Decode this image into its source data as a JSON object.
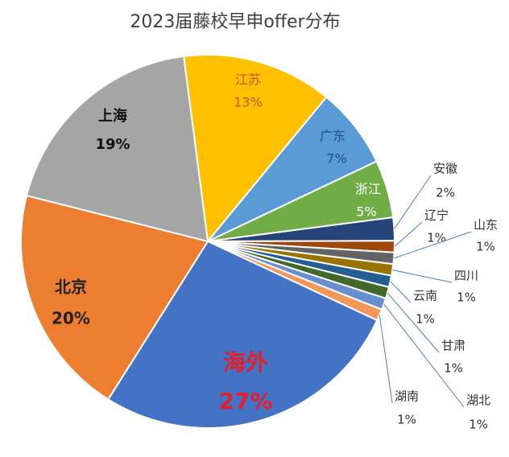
{
  "chart_data": {
    "type": "pie",
    "title": "2023届藤校早申offer分布",
    "categories": [
      "江苏",
      "广东",
      "浙江",
      "安徽",
      "辽宁",
      "山东",
      "四川",
      "云南",
      "甘肃",
      "湖北",
      "湖南",
      "海外",
      "北京",
      "上海"
    ],
    "values": [
      13,
      7,
      5,
      2,
      1,
      1,
      1,
      1,
      1,
      1,
      1,
      27,
      20,
      19
    ],
    "value_labels": [
      "13%",
      "7%",
      "5%",
      "2%",
      "1%",
      "1%",
      "1%",
      "1%",
      "1%",
      "1%",
      "1%",
      "27%",
      "20%",
      "19%"
    ],
    "colors": [
      "#ffc000",
      "#5b9bd5",
      "#70ad47",
      "#264478",
      "#9e480e",
      "#636363",
      "#997300",
      "#255e91",
      "#43682b",
      "#698ed0",
      "#f1975a",
      "#4472c4",
      "#ed7d31",
      "#a5a5a5"
    ]
  }
}
